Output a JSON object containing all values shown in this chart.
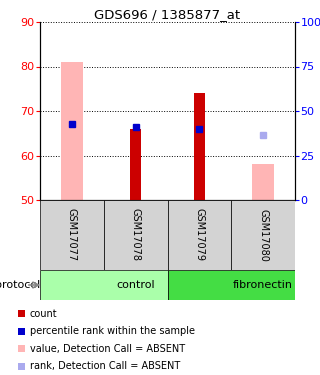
{
  "title": "GDS696 / 1385877_at",
  "samples": [
    "GSM17077",
    "GSM17078",
    "GSM17079",
    "GSM17080"
  ],
  "ylim_left": [
    50,
    90
  ],
  "ylim_right": [
    0,
    100
  ],
  "yticks_left": [
    50,
    60,
    70,
    80,
    90
  ],
  "yticks_right": [
    0,
    25,
    50,
    75,
    100
  ],
  "bar_bottom": 50,
  "red_bars_values": [
    null,
    66,
    74,
    null
  ],
  "red_bar_color": "#cc0000",
  "pink_bars_values": [
    81,
    null,
    null,
    58
  ],
  "pink_bar_color": "#ffb5b5",
  "blue_sq_values": [
    67,
    66.5,
    66,
    null
  ],
  "blue_sq_color": "#0000cc",
  "lblue_sq_values": [
    null,
    null,
    null,
    64.5
  ],
  "lblue_sq_color": "#aaaaee",
  "group_control_color": "#aaffaa",
  "group_fibro_color": "#44dd44",
  "legend_items": [
    {
      "label": "count",
      "color": "#cc0000"
    },
    {
      "label": "percentile rank within the sample",
      "color": "#0000cc"
    },
    {
      "label": "value, Detection Call = ABSENT",
      "color": "#ffb5b5"
    },
    {
      "label": "rank, Detection Call = ABSENT",
      "color": "#aaaaee"
    }
  ],
  "pink_bar_width": 0.35,
  "red_bar_width": 0.18,
  "blue_sq_size": 4,
  "lblue_sq_size": 5
}
